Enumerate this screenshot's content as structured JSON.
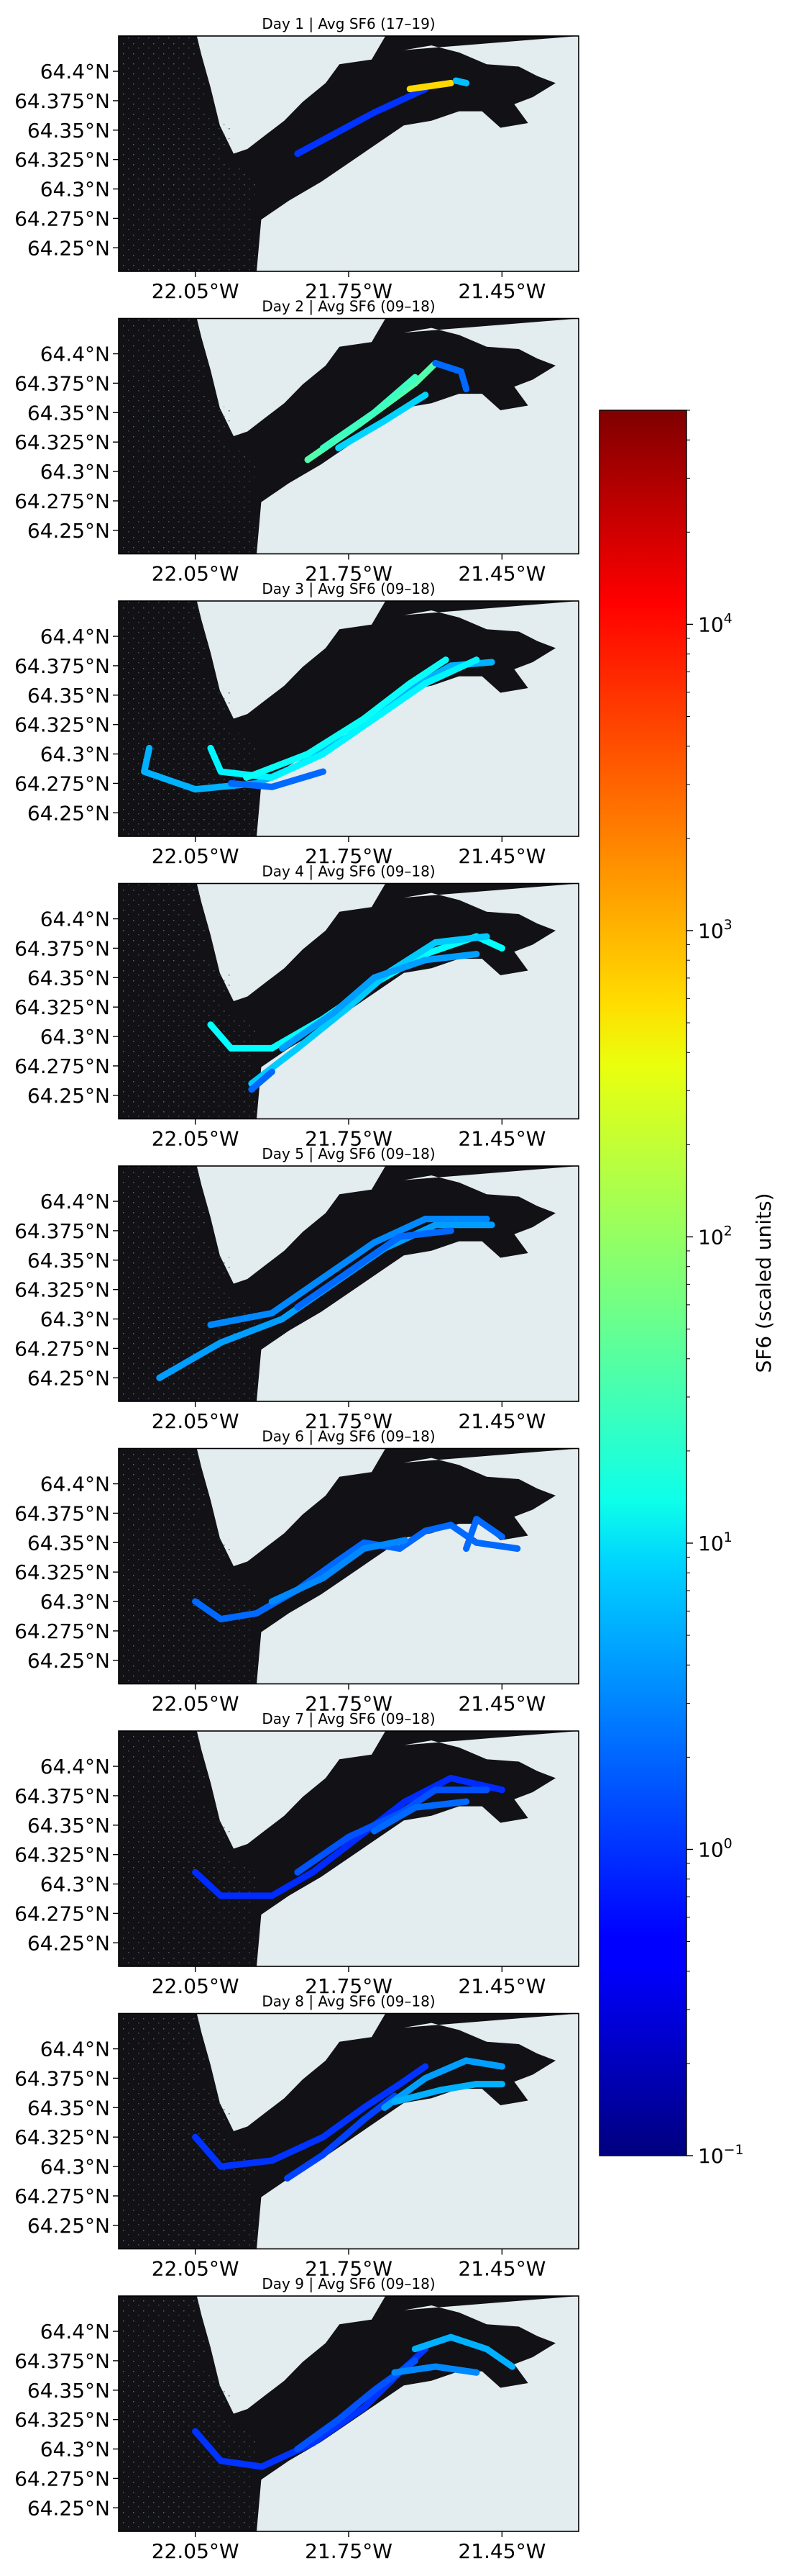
{
  "chart_data": {
    "type": "scatter",
    "lat_ticks": [
      "64.4°N",
      "64.375°N",
      "64.35°N",
      "64.325°N",
      "64.3°N",
      "64.275°N",
      "64.25°N"
    ],
    "lon_ticks": [
      "22.05°W",
      "21.75°W",
      "21.45°W"
    ],
    "lat_values": [
      64.4,
      64.375,
      64.35,
      64.325,
      64.3,
      64.275,
      64.25
    ],
    "lon_values": [
      -22.05,
      -21.75,
      -21.45
    ],
    "xlim": [
      -22.2,
      -21.3
    ],
    "ylim": [
      64.23,
      64.43
    ],
    "grid": false,
    "map_colors": {
      "land": "#111116",
      "water": "#e3ecee"
    },
    "colorbar": {
      "label": "SF6 (scaled units)",
      "scale": "log",
      "range": [
        0.1,
        50000
      ],
      "cmap": "jet",
      "tick_values": [
        0.1,
        1,
        10,
        100,
        1000,
        10000
      ],
      "tick_labels": [
        {
          "base": "10",
          "exp": "−1"
        },
        {
          "base": "10",
          "exp": "0"
        },
        {
          "base": "10",
          "exp": "1"
        },
        {
          "base": "10",
          "exp": "2"
        },
        {
          "base": "10",
          "exp": "3"
        },
        {
          "base": "10",
          "exp": "4"
        }
      ]
    },
    "panels": [
      {
        "title": "Day 1 | Avg SF6 (17–19)",
        "tracks": [
          {
            "sf6": 1.0,
            "points": [
              [
                -21.85,
                64.33
              ],
              [
                -21.7,
                64.365
              ],
              [
                -21.6,
                64.385
              ]
            ]
          },
          {
            "sf6": 600,
            "points": [
              [
                -21.63,
                64.385
              ],
              [
                -21.55,
                64.39
              ]
            ]
          },
          {
            "sf6": 6,
            "points": [
              [
                -21.54,
                64.392
              ],
              [
                -21.52,
                64.39
              ]
            ]
          }
        ]
      },
      {
        "title": "Day 2 | Avg SF6 (09–18)",
        "tracks": [
          {
            "sf6": 40,
            "points": [
              [
                -21.83,
                64.31
              ],
              [
                -21.73,
                64.34
              ],
              [
                -21.62,
                64.375
              ],
              [
                -21.58,
                64.392
              ]
            ]
          },
          {
            "sf6": 30,
            "points": [
              [
                -21.8,
                64.32
              ],
              [
                -21.7,
                64.35
              ],
              [
                -21.62,
                64.38
              ]
            ]
          },
          {
            "sf6": 8,
            "points": [
              [
                -21.77,
                64.32
              ],
              [
                -21.68,
                64.343
              ],
              [
                -21.6,
                64.365
              ]
            ]
          },
          {
            "sf6": 2,
            "points": [
              [
                -21.58,
                64.392
              ],
              [
                -21.53,
                64.385
              ],
              [
                -21.52,
                64.37
              ]
            ]
          }
        ]
      },
      {
        "title": "Day 3 | Avg SF6 (09–18)",
        "tracks": [
          {
            "sf6": 5,
            "points": [
              [
                -22.14,
                64.305
              ],
              [
                -22.15,
                64.285
              ],
              [
                -22.05,
                64.27
              ],
              [
                -21.93,
                64.275
              ],
              [
                -21.85,
                64.29
              ],
              [
                -21.75,
                64.315
              ],
              [
                -21.65,
                64.35
              ],
              [
                -21.55,
                64.375
              ],
              [
                -21.47,
                64.378
              ]
            ]
          },
          {
            "sf6": 12,
            "points": [
              [
                -22.02,
                64.305
              ],
              [
                -22.0,
                64.285
              ],
              [
                -21.9,
                64.28
              ],
              [
                -21.8,
                64.3
              ],
              [
                -21.7,
                64.33
              ],
              [
                -21.6,
                64.36
              ],
              [
                -21.5,
                64.38
              ]
            ]
          },
          {
            "sf6": 15,
            "points": [
              [
                -21.95,
                64.28
              ],
              [
                -21.83,
                64.3
              ],
              [
                -21.72,
                64.33
              ],
              [
                -21.63,
                64.36
              ],
              [
                -21.56,
                64.38
              ]
            ]
          },
          {
            "sf6": 2,
            "points": [
              [
                -21.98,
                64.275
              ],
              [
                -21.9,
                64.272
              ],
              [
                -21.8,
                64.285
              ]
            ]
          }
        ]
      },
      {
        "title": "Day 4 | Avg SF6 (09–18)",
        "tracks": [
          {
            "sf6": 14,
            "points": [
              [
                -22.02,
                64.31
              ],
              [
                -21.98,
                64.29
              ],
              [
                -21.9,
                64.29
              ],
              [
                -21.8,
                64.315
              ],
              [
                -21.7,
                64.345
              ],
              [
                -21.6,
                64.37
              ],
              [
                -21.5,
                64.385
              ],
              [
                -21.45,
                64.375
              ]
            ]
          },
          {
            "sf6": 7,
            "points": [
              [
                -21.94,
                64.26
              ],
              [
                -21.85,
                64.29
              ],
              [
                -21.75,
                64.325
              ],
              [
                -21.67,
                64.355
              ],
              [
                -21.58,
                64.38
              ],
              [
                -21.48,
                64.385
              ]
            ]
          },
          {
            "sf6": 4,
            "points": [
              [
                -21.88,
                64.29
              ],
              [
                -21.78,
                64.32
              ],
              [
                -21.7,
                64.35
              ],
              [
                -21.6,
                64.365
              ],
              [
                -21.5,
                64.37
              ]
            ]
          },
          {
            "sf6": 2,
            "points": [
              [
                -21.94,
                64.255
              ],
              [
                -21.9,
                64.27
              ]
            ]
          }
        ]
      },
      {
        "title": "Day 5 | Avg SF6 (09–18)",
        "tracks": [
          {
            "sf6": 4,
            "points": [
              [
                -22.12,
                64.25
              ],
              [
                -22.0,
                64.28
              ],
              [
                -21.88,
                64.3
              ],
              [
                -21.78,
                64.33
              ],
              [
                -21.68,
                64.36
              ],
              [
                -21.58,
                64.38
              ],
              [
                -21.47,
                64.38
              ]
            ]
          },
          {
            "sf6": 3,
            "points": [
              [
                -22.02,
                64.295
              ],
              [
                -21.9,
                64.305
              ],
              [
                -21.8,
                64.335
              ],
              [
                -21.7,
                64.365
              ],
              [
                -21.6,
                64.385
              ],
              [
                -21.48,
                64.385
              ]
            ]
          },
          {
            "sf6": 2,
            "points": [
              [
                -21.85,
                64.31
              ],
              [
                -21.75,
                64.34
              ],
              [
                -21.65,
                64.37
              ],
              [
                -21.55,
                64.375
              ]
            ]
          }
        ]
      },
      {
        "title": "Day 6 | Avg SF6 (09–18)",
        "tracks": [
          {
            "sf6": 2,
            "points": [
              [
                -22.05,
                64.3
              ],
              [
                -22.0,
                64.285
              ],
              [
                -21.93,
                64.29
              ],
              [
                -21.85,
                64.31
              ],
              [
                -21.77,
                64.335
              ],
              [
                -21.72,
                64.35
              ],
              [
                -21.65,
                64.345
              ],
              [
                -21.6,
                64.36
              ],
              [
                -21.55,
                64.365
              ],
              [
                -21.5,
                64.35
              ],
              [
                -21.42,
                64.345
              ]
            ]
          },
          {
            "sf6": 3,
            "points": [
              [
                -21.9,
                64.3
              ],
              [
                -21.8,
                64.32
              ],
              [
                -21.72,
                64.345
              ],
              [
                -21.64,
                64.352
              ]
            ]
          },
          {
            "sf6": 2,
            "points": [
              [
                -21.52,
                64.345
              ],
              [
                -21.5,
                64.37
              ],
              [
                -21.45,
                64.355
              ]
            ]
          }
        ]
      },
      {
        "title": "Day 7 | Avg SF6 (09–18)",
        "tracks": [
          {
            "sf6": 0.9,
            "points": [
              [
                -22.05,
                64.31
              ],
              [
                -22.0,
                64.29
              ],
              [
                -21.9,
                64.29
              ],
              [
                -21.82,
                64.31
              ],
              [
                -21.73,
                64.34
              ],
              [
                -21.64,
                64.37
              ],
              [
                -21.55,
                64.39
              ],
              [
                -21.45,
                64.38
              ]
            ]
          },
          {
            "sf6": 1.5,
            "points": [
              [
                -21.85,
                64.31
              ],
              [
                -21.75,
                64.34
              ],
              [
                -21.65,
                64.36
              ],
              [
                -21.58,
                64.38
              ],
              [
                -21.48,
                64.38
              ]
            ]
          },
          {
            "sf6": 2,
            "points": [
              [
                -21.7,
                64.345
              ],
              [
                -21.62,
                64.365
              ],
              [
                -21.52,
                64.37
              ]
            ]
          }
        ]
      },
      {
        "title": "Day 8 | Avg SF6 (09–18)",
        "tracks": [
          {
            "sf6": 1,
            "points": [
              [
                -22.05,
                64.325
              ],
              [
                -22.0,
                64.3
              ],
              [
                -21.9,
                64.305
              ],
              [
                -21.8,
                64.325
              ],
              [
                -21.72,
                64.35
              ],
              [
                -21.65,
                64.37
              ],
              [
                -21.6,
                64.385
              ]
            ]
          },
          {
            "sf6": 1.2,
            "points": [
              [
                -21.87,
                64.29
              ],
              [
                -21.8,
                64.31
              ],
              [
                -21.72,
                64.34
              ],
              [
                -21.66,
                64.36
              ]
            ]
          },
          {
            "sf6": 4,
            "points": [
              [
                -21.68,
                64.35
              ],
              [
                -21.6,
                64.375
              ],
              [
                -21.52,
                64.39
              ],
              [
                -21.45,
                64.385
              ]
            ]
          },
          {
            "sf6": 5,
            "points": [
              [
                -21.66,
                64.355
              ],
              [
                -21.57,
                64.365
              ],
              [
                -21.5,
                64.37
              ],
              [
                -21.45,
                64.37
              ]
            ]
          }
        ]
      },
      {
        "title": "Day 9 | Avg SF6 (09–18)",
        "tracks": [
          {
            "sf6": 1,
            "points": [
              [
                -22.05,
                64.315
              ],
              [
                -22.0,
                64.29
              ],
              [
                -21.92,
                64.285
              ],
              [
                -21.82,
                64.305
              ],
              [
                -21.72,
                64.335
              ],
              [
                -21.65,
                64.365
              ],
              [
                -21.6,
                64.385
              ]
            ]
          },
          {
            "sf6": 1.5,
            "points": [
              [
                -21.85,
                64.3
              ],
              [
                -21.77,
                64.325
              ],
              [
                -21.7,
                64.35
              ],
              [
                -21.62,
                64.375
              ]
            ]
          },
          {
            "sf6": 5,
            "points": [
              [
                -21.62,
                64.385
              ],
              [
                -21.55,
                64.395
              ],
              [
                -21.48,
                64.385
              ],
              [
                -21.43,
                64.37
              ]
            ]
          },
          {
            "sf6": 3,
            "points": [
              [
                -21.66,
                64.365
              ],
              [
                -21.58,
                64.37
              ],
              [
                -21.5,
                64.365
              ]
            ]
          }
        ]
      }
    ]
  }
}
